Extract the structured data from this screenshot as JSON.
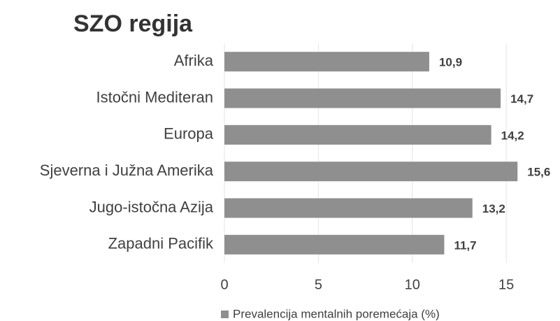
{
  "chart_data": {
    "type": "hbar",
    "title": "SZO regija",
    "categories": [
      "Afrika",
      "Istočni Mediteran",
      "Europa",
      "Sjeverna i Južna Amerika",
      "Jugo-istočna Azija",
      "Zapadni Pacifik"
    ],
    "series": [
      {
        "name": "Prevalencija mentalnih poremećaja (%)",
        "color": "#8f8f8f",
        "values": [
          10.9,
          14.7,
          14.2,
          15.6,
          13.2,
          11.7
        ],
        "value_labels": [
          "10,9",
          "14,7",
          "14,2",
          "15,6",
          "13,2",
          "11,7"
        ]
      }
    ],
    "xlim": [
      0,
      16
    ],
    "xticks": [
      0,
      5,
      10,
      15
    ],
    "grid": true,
    "legend": "bottom"
  }
}
